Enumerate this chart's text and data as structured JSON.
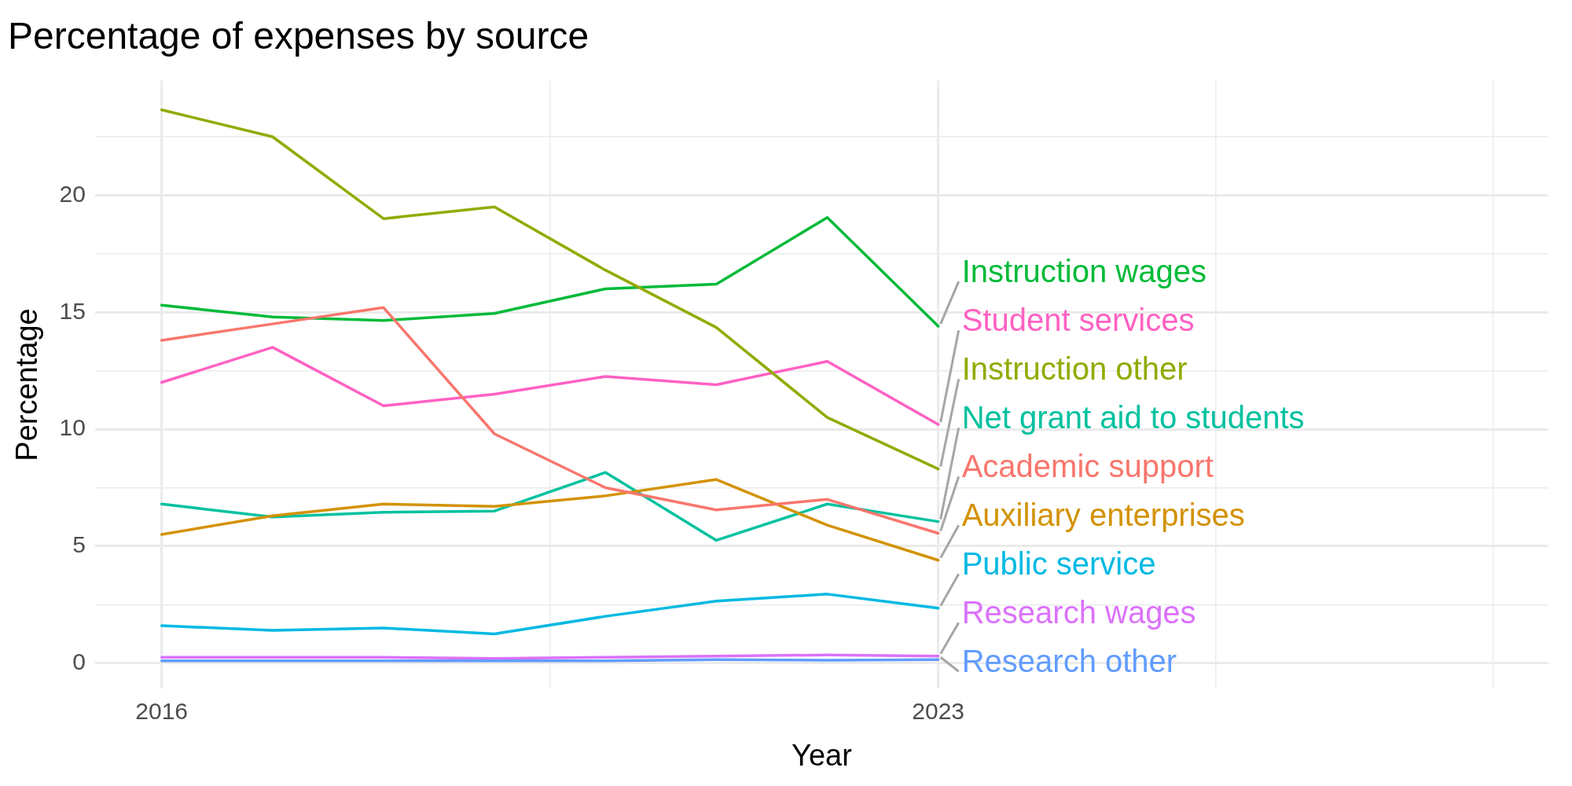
{
  "chart_data": {
    "type": "line",
    "title": "Percentage of expenses by source",
    "xlabel": "Year",
    "ylabel": "Percentage",
    "x": [
      2016,
      2017,
      2018,
      2019,
      2020,
      2021,
      2022,
      2023
    ],
    "xlim": [
      2015.4,
      2028.5
    ],
    "xticks": [
      2016,
      {
        "value": 2019.5,
        "label": null
      },
      2023,
      {
        "value": 2025.5,
        "label": null
      },
      {
        "value": 2028,
        "label": null
      }
    ],
    "ylim": [
      -1.1,
      24.9
    ],
    "yticks": [
      0,
      {
        "value": 2.5,
        "label": null
      },
      5,
      {
        "value": 7.5,
        "label": null
      },
      10,
      {
        "value": 12.5,
        "label": null
      },
      15,
      {
        "value": 17.5,
        "label": null
      },
      20,
      {
        "value": 22.5,
        "label": null
      }
    ],
    "grid": true,
    "legend": false,
    "marker": "none",
    "line_style": "solid",
    "series": [
      {
        "name": "Academic support",
        "color": "#f8766d",
        "values": [
          13.8,
          14.5,
          15.2,
          9.8,
          7.5,
          6.55,
          7.0,
          5.55
        ]
      },
      {
        "name": "Auxiliary enterprises",
        "color": "#d39200",
        "values": [
          5.5,
          6.3,
          6.8,
          6.7,
          7.15,
          7.85,
          5.9,
          4.4
        ]
      },
      {
        "name": "Instruction other",
        "color": "#93aa00",
        "values": [
          23.65,
          22.5,
          19.0,
          19.5,
          16.8,
          14.35,
          10.5,
          8.3
        ]
      },
      {
        "name": "Instruction wages",
        "color": "#00ba38",
        "values": [
          15.3,
          14.8,
          14.65,
          14.95,
          16.0,
          16.2,
          19.05,
          14.4
        ]
      },
      {
        "name": "Net grant aid to students",
        "color": "#00c19f",
        "values": [
          6.8,
          6.25,
          6.45,
          6.5,
          8.15,
          5.25,
          6.8,
          6.05
        ]
      },
      {
        "name": "Public service",
        "color": "#00b9e3",
        "values": [
          1.6,
          1.4,
          1.5,
          1.25,
          2.0,
          2.65,
          2.95,
          2.35
        ]
      },
      {
        "name": "Research other",
        "color": "#619cff",
        "values": [
          0.1,
          0.1,
          0.1,
          0.1,
          0.1,
          0.15,
          0.12,
          0.15
        ]
      },
      {
        "name": "Research wages",
        "color": "#db72fb",
        "values": [
          0.25,
          0.25,
          0.25,
          0.2,
          0.25,
          0.3,
          0.35,
          0.3
        ]
      },
      {
        "name": "Student services",
        "color": "#ff61c3",
        "values": [
          12.0,
          13.5,
          11.0,
          11.5,
          12.25,
          11.9,
          12.9,
          10.2
        ]
      }
    ]
  }
}
